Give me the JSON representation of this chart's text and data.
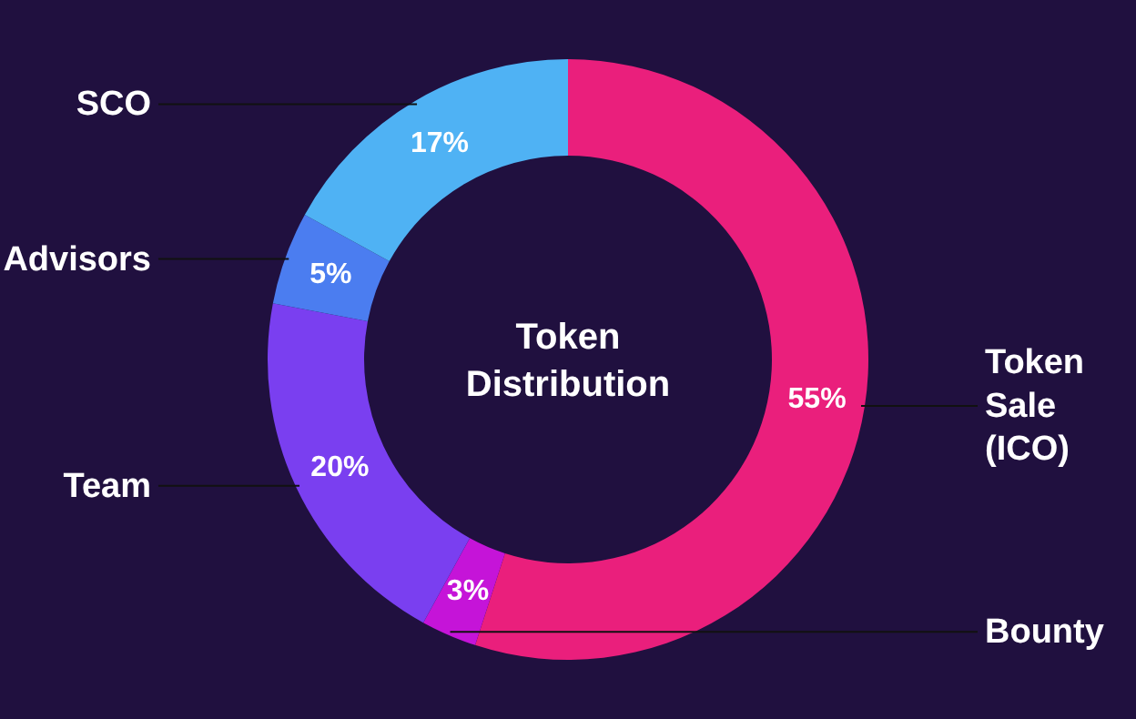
{
  "chart_data": {
    "type": "donut",
    "title": "Token Distribution",
    "categories": [
      "Token Sale (ICO)",
      "Bounty",
      "Team",
      "Advisors",
      "SCO"
    ],
    "values": [
      55,
      3,
      20,
      5,
      17
    ],
    "colors": [
      "#ea1f7c",
      "#c514d8",
      "#7a3ff0",
      "#4b7df0",
      "#4fb2f4"
    ],
    "value_labels": [
      "55%",
      "3%",
      "20%",
      "5%",
      "17%"
    ]
  }
}
